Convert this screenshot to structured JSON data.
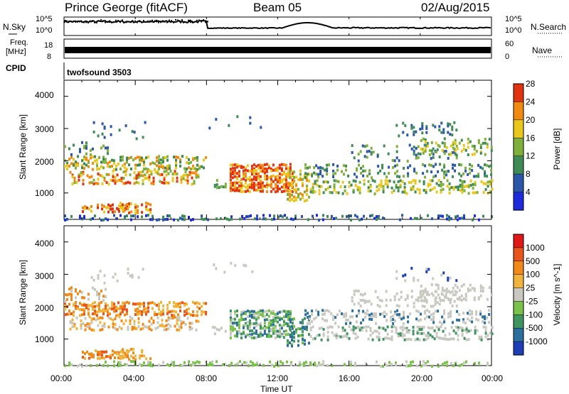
{
  "header": {
    "station": "Prince George (fitACF)",
    "beam": "Beam 05",
    "date": "02/Aug/2015"
  },
  "noise_panel": {
    "left_label": "N.Sky",
    "right_label": "N.Search",
    "left_ticks": [
      "10^5",
      "10^0"
    ],
    "right_ticks": [
      "10^5",
      "10^0"
    ]
  },
  "freq_panel": {
    "left_label_line1": "Freq.",
    "left_label_line2": "[MHz]",
    "left_ticks": [
      "18",
      "8"
    ],
    "right_label": "Nave",
    "right_ticks": [
      "60",
      "0"
    ]
  },
  "cpid": {
    "label": "CPID",
    "value": "twofsound 3503"
  },
  "xaxis": {
    "label": "Time UT",
    "ticks": [
      "00:00",
      "04:00",
      "08:00",
      "12:00",
      "16:00",
      "20:00",
      "00:00"
    ]
  },
  "chart_data": [
    {
      "type": "heatmap",
      "title": "",
      "ylabel": "Slant Range [km]",
      "xlabel": "Time UT",
      "xlim": [
        "00:00",
        "24:00"
      ],
      "ylim": [
        180,
        4500
      ],
      "yticks": [
        1000,
        2000,
        3000,
        4000
      ],
      "colorbar": {
        "label": "Power [dB]",
        "ticks": [
          "4",
          "8",
          "12",
          "16",
          "20",
          "24",
          "28"
        ],
        "colors": [
          "#1e2bdc",
          "#2c57a8",
          "#3f8b55",
          "#7fb03c",
          "#e9c71c",
          "#f08a12",
          "#e03410"
        ]
      }
    },
    {
      "type": "heatmap",
      "title": "",
      "ylabel": "Slant Range [km]",
      "xlabel": "Time UT",
      "xlim": [
        "00:00",
        "24:00"
      ],
      "ylim": [
        180,
        4500
      ],
      "yticks": [
        1000,
        2000,
        3000,
        4000
      ],
      "colorbar": {
        "label": "Velocity [m s^-1]",
        "ticks": [
          "1000",
          "500",
          "100",
          "25",
          "-25",
          "-100",
          "-500",
          "-1000"
        ],
        "colors": [
          "#1c3fb8",
          "#2b6f9c",
          "#3f9460",
          "#78c24a",
          "#c8c8c0",
          "#f0b43c",
          "#ef8a1a",
          "#e8561c",
          "#e01818"
        ]
      }
    }
  ]
}
